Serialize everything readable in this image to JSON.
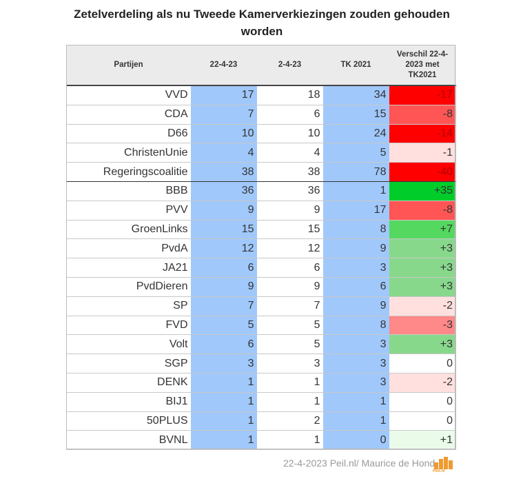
{
  "title": "Zetelverdeling als nu Tweede Kamerverkiezingen zouden gehouden worden",
  "chart_data": {
    "type": "table",
    "columns": [
      "Partijen",
      "22-4-23",
      "2-4-23",
      "TK 2021",
      "Verschil 22-4-2023 met TK2021"
    ],
    "rows": [
      {
        "party": "VVD",
        "c1": "17",
        "c2": "18",
        "tk": "34",
        "diff": "-17",
        "color": "#ff0000"
      },
      {
        "party": "CDA",
        "c1": "7",
        "c2": "6",
        "tk": "15",
        "diff": "-8",
        "color": "#ff5555"
      },
      {
        "party": "D66",
        "c1": "10",
        "c2": "10",
        "tk": "24",
        "diff": "-14",
        "color": "#ff0000"
      },
      {
        "party": "ChristenUnie",
        "c1": "4",
        "c2": "4",
        "tk": "5",
        "diff": "-1",
        "color": "#ffe0de"
      },
      {
        "party": "Regeringscoalitie",
        "c1": "38",
        "c2": "38",
        "tk": "78",
        "diff": "-40",
        "color": "#ff0000",
        "coalition": true
      },
      {
        "party": "BBB",
        "c1": "36",
        "c2": "36",
        "tk": "1",
        "diff": "+35",
        "color": "#00cc2a"
      },
      {
        "party": "PVV",
        "c1": "9",
        "c2": "9",
        "tk": "17",
        "diff": "-8",
        "color": "#ff5555"
      },
      {
        "party": "GroenLinks",
        "c1": "15",
        "c2": "15",
        "tk": "8",
        "diff": "+7",
        "color": "#55d860"
      },
      {
        "party": "PvdA",
        "c1": "12",
        "c2": "12",
        "tk": "9",
        "diff": "+3",
        "color": "#88d88c"
      },
      {
        "party": "JA21",
        "c1": "6",
        "c2": "6",
        "tk": "3",
        "diff": "+3",
        "color": "#88d88c"
      },
      {
        "party": "PvdDieren",
        "c1": "9",
        "c2": "9",
        "tk": "6",
        "diff": "+3",
        "color": "#88d88c"
      },
      {
        "party": "SP",
        "c1": "7",
        "c2": "7",
        "tk": "9",
        "diff": "-2",
        "color": "#ffe0de"
      },
      {
        "party": "FVD",
        "c1": "5",
        "c2": "5",
        "tk": "8",
        "diff": "-3",
        "color": "#ff8888"
      },
      {
        "party": "Volt",
        "c1": "6",
        "c2": "5",
        "tk": "3",
        "diff": "+3",
        "color": "#88d88c"
      },
      {
        "party": "SGP",
        "c1": "3",
        "c2": "3",
        "tk": "3",
        "diff": "0",
        "color": "#ffffff"
      },
      {
        "party": "DENK",
        "c1": "1",
        "c2": "1",
        "tk": "3",
        "diff": "-2",
        "color": "#ffe0de"
      },
      {
        "party": "BIJ1",
        "c1": "1",
        "c2": "1",
        "tk": "1",
        "diff": "0",
        "color": "#ffffff"
      },
      {
        "party": "50PLUS",
        "c1": "1",
        "c2": "2",
        "tk": "1",
        "diff": "0",
        "color": "#ffffff"
      },
      {
        "party": "BVNL",
        "c1": "1",
        "c2": "1",
        "tk": "0",
        "diff": "+1",
        "color": "#eafbea"
      }
    ]
  },
  "footer": "22-4-2023 Peil.nl/ Maurice de Hond",
  "logo_text": "Peil.nl"
}
